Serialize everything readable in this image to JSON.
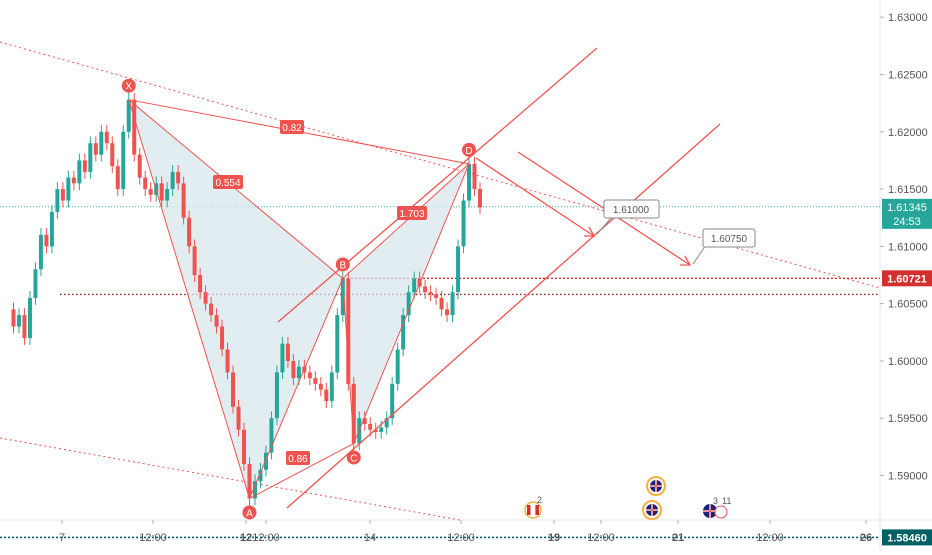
{
  "colors": {
    "up": "#26a69a",
    "down": "#ef5350",
    "pattern_line": "#ef5350",
    "pattern_fill": "#d6e6ec",
    "last_price": "#26a69a",
    "resistance": "#d32f2f",
    "support": "#b71c1c",
    "bottom_line": "#006064"
  },
  "chart_data": {
    "type": "candlestick",
    "ylim": [
      1.5835,
      1.6315
    ],
    "y_ticks": [
      "1.63000",
      "1.62500",
      "1.62000",
      "1.61500",
      "1.61000",
      "1.60500",
      "1.60000",
      "1.59500",
      "1.59000"
    ],
    "x_ticks": [
      "7",
      "12:00",
      "12",
      "12:00",
      "14",
      "12:00",
      "19",
      "12:00",
      "21",
      "12:00",
      "26"
    ],
    "price_labels": {
      "last": {
        "value": "1.61345",
        "countdown": "24:53"
      },
      "resistance": "1.60721",
      "bottom": "1.58460"
    },
    "harmonic_points": [
      {
        "name": "X",
        "price": 1.6228
      },
      {
        "name": "A",
        "price": 1.588
      },
      {
        "name": "B",
        "price": 1.6072
      },
      {
        "name": "C",
        "price": 1.5928
      },
      {
        "name": "D",
        "price": 1.6172
      }
    ],
    "ratios": [
      "0.82",
      "0.554",
      "1.703",
      "0.86"
    ],
    "targets": [
      "1.61000",
      "1.60750"
    ],
    "events": [
      {
        "flag": "ca-flag-icon",
        "count": "2"
      },
      {
        "flag": "uk-flag-icon",
        "count": ""
      },
      {
        "flag": "uk-flag-icon",
        "count": "3"
      },
      {
        "flag": "uk-flag-icon",
        "count": "11"
      }
    ],
    "price_path": [
      [
        0,
        1.6045
      ],
      [
        1,
        1.603
      ],
      [
        2,
        1.604
      ],
      [
        3,
        1.602
      ],
      [
        4,
        1.6055
      ],
      [
        5,
        1.608
      ],
      [
        6,
        1.611
      ],
      [
        7,
        1.61
      ],
      [
        8,
        1.613
      ],
      [
        9,
        1.615
      ],
      [
        10,
        1.614
      ],
      [
        11,
        1.616
      ],
      [
        12,
        1.6155
      ],
      [
        13,
        1.6175
      ],
      [
        14,
        1.6165
      ],
      [
        15,
        1.619
      ],
      [
        16,
        1.618
      ],
      [
        17,
        1.62
      ],
      [
        18,
        1.619
      ],
      [
        19,
        1.617
      ],
      [
        20,
        1.615
      ],
      [
        21,
        1.62
      ],
      [
        22,
        1.6228
      ],
      [
        23,
        1.618
      ],
      [
        24,
        1.616
      ],
      [
        25,
        1.615
      ],
      [
        26,
        1.6145
      ],
      [
        27,
        1.6155
      ],
      [
        28,
        1.614
      ],
      [
        29,
        1.615
      ],
      [
        30,
        1.6165
      ],
      [
        31,
        1.6155
      ],
      [
        32,
        1.6125
      ],
      [
        33,
        1.61
      ],
      [
        34,
        1.6075
      ],
      [
        35,
        1.606
      ],
      [
        36,
        1.605
      ],
      [
        37,
        1.604
      ],
      [
        38,
        1.603
      ],
      [
        39,
        1.601
      ],
      [
        40,
        1.599
      ],
      [
        41,
        1.596
      ],
      [
        42,
        1.594
      ],
      [
        43,
        1.591
      ],
      [
        44,
        1.588
      ],
      [
        45,
        1.5895
      ],
      [
        46,
        1.5905
      ],
      [
        47,
        1.592
      ],
      [
        48,
        1.595
      ],
      [
        49,
        1.599
      ],
      [
        50,
        1.6015
      ],
      [
        51,
        1.6
      ],
      [
        52,
        1.5985
      ],
      [
        53,
        1.5995
      ],
      [
        54,
        1.599
      ],
      [
        55,
        1.5985
      ],
      [
        56,
        1.598
      ],
      [
        57,
        1.5975
      ],
      [
        58,
        1.5965
      ],
      [
        59,
        1.599
      ],
      [
        60,
        1.604
      ],
      [
        61,
        1.6072
      ],
      [
        62,
        1.598
      ],
      [
        63,
        1.5928
      ],
      [
        64,
        1.595
      ],
      [
        65,
        1.5945
      ],
      [
        66,
        1.594
      ],
      [
        67,
        1.5938
      ],
      [
        68,
        1.5942
      ],
      [
        69,
        1.595
      ],
      [
        70,
        1.598
      ],
      [
        71,
        1.601
      ],
      [
        72,
        1.604
      ],
      [
        73,
        1.606
      ],
      [
        74,
        1.6072
      ],
      [
        75,
        1.6065
      ],
      [
        76,
        1.606
      ],
      [
        77,
        1.6058
      ],
      [
        78,
        1.6055
      ],
      [
        79,
        1.6045
      ],
      [
        80,
        1.604
      ],
      [
        81,
        1.606
      ],
      [
        82,
        1.61
      ],
      [
        83,
        1.614
      ],
      [
        84,
        1.6172
      ],
      [
        85,
        1.615
      ],
      [
        86,
        1.6134
      ]
    ],
    "grid": false,
    "legend": "none"
  }
}
